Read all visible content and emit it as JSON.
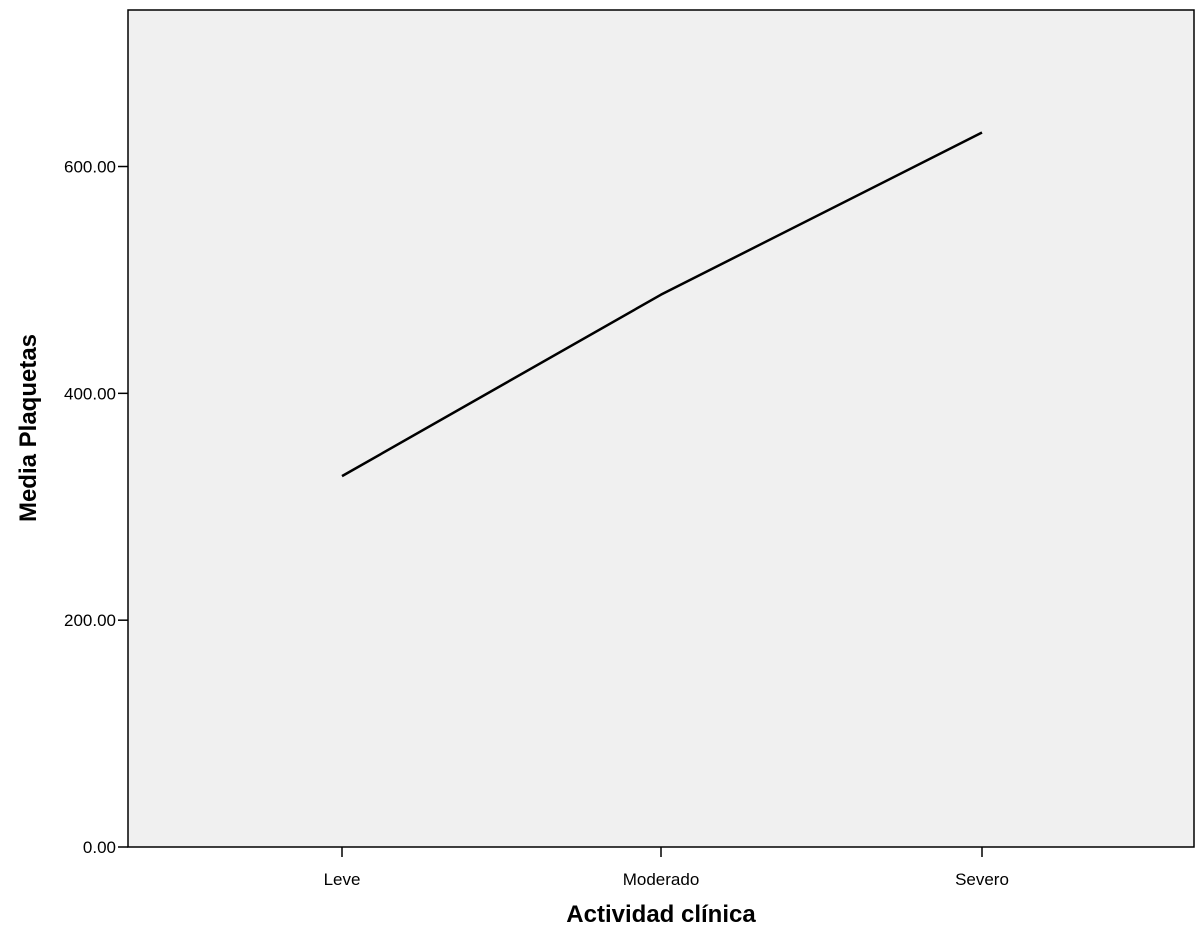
{
  "chart_data": {
    "type": "line",
    "title": "",
    "xlabel": "Actividad clínica",
    "ylabel": "Media Plaquetas",
    "categories": [
      "Leve",
      "Moderado",
      "Severo"
    ],
    "series": [
      {
        "values": [
          327,
          487,
          630
        ]
      }
    ],
    "ylim": [
      0,
      738
    ],
    "yticks": [
      0,
      200,
      400,
      600
    ],
    "ytick_labels": [
      "0.00",
      "200.00",
      "400.00",
      "600.00"
    ],
    "grid": false,
    "legend": "none",
    "colors": {
      "plot_background": "#f0f0f0",
      "line": "#000000",
      "axis": "#000000"
    }
  }
}
